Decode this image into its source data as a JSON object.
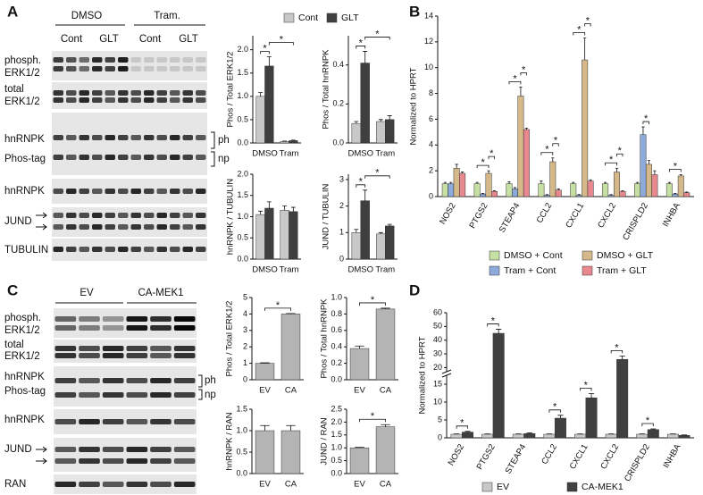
{
  "panel_labels": [
    "A",
    "B",
    "C",
    "D"
  ],
  "blots": {
    "A": {
      "groups": [
        "DMSO",
        "Tram."
      ],
      "conditions": [
        "Cont",
        "GLT",
        "Cont",
        "GLT"
      ],
      "rows": [
        [
          "phosph.",
          "ERK1/2"
        ],
        [
          "total",
          "ERK1/2"
        ],
        [
          "hnRNPK",
          "Phos-tag"
        ],
        [
          "hnRNPK"
        ],
        [
          "JUND"
        ],
        [
          "TUBULIN"
        ]
      ],
      "bands": [
        "ph",
        "np"
      ]
    },
    "C": {
      "groups": [
        "EV",
        "CA-MEK1"
      ],
      "rows": [
        [
          "phosph.",
          "ERK1/2"
        ],
        [
          "total",
          "ERK1/2"
        ],
        [
          "hnRNPK",
          "Phos-tag"
        ],
        [
          "hnRNPK"
        ],
        [
          "JUND"
        ],
        [
          "RAN"
        ]
      ],
      "bands": [
        "ph",
        "np"
      ]
    }
  },
  "chart_data": [
    {
      "type": "bar",
      "ylabel": "Phos / Total ERK1/2",
      "categories": [
        "DMSO",
        "Tram"
      ],
      "series": [
        {
          "name": "Cont",
          "color": "#c8c8c8",
          "values": [
            1.0,
            0.03
          ],
          "errors": [
            0.08,
            0.01
          ]
        },
        {
          "name": "GLT",
          "color": "#3f3f3f",
          "values": [
            1.65,
            0.05
          ],
          "errors": [
            0.2,
            0.01
          ]
        }
      ],
      "ylim": [
        0,
        2.3
      ],
      "yticks": [
        {
          "value": 0,
          "label": "0.0"
        },
        {
          "value": 0.5,
          "label": "0.5"
        },
        {
          "value": 1,
          "label": "1.0"
        },
        {
          "value": 1.5,
          "label": "1.5"
        },
        {
          "value": 2,
          "label": "2.0"
        }
      ],
      "annotations": [
        "*",
        "*"
      ]
    },
    {
      "type": "bar",
      "ylabel": "Phos / Total hnRNPK",
      "categories": [
        "DMSO",
        "Tram"
      ],
      "series": [
        {
          "color": "#c8c8c8",
          "values": [
            0.1,
            0.11
          ],
          "errors": [
            0.01,
            0.01
          ]
        },
        {
          "color": "#3f3f3f",
          "values": [
            0.41,
            0.12
          ],
          "errors": [
            0.06,
            0.02
          ]
        }
      ],
      "ylim": [
        0,
        0.55
      ],
      "yticks": [
        {
          "value": 0,
          "label": "0.0"
        },
        {
          "value": 0.2,
          "label": "0.2"
        },
        {
          "value": 0.4,
          "label": "0.4"
        }
      ],
      "annotations": [
        "*",
        "*"
      ]
    },
    {
      "type": "bar",
      "ylabel": "hnRNPK / TUBULIN",
      "categories": [
        "DMSO",
        "Tram"
      ],
      "series": [
        {
          "color": "#c8c8c8",
          "values": [
            1.05,
            1.15
          ],
          "errors": [
            0.08,
            0.1
          ]
        },
        {
          "color": "#3f3f3f",
          "values": [
            1.2,
            1.12
          ],
          "errors": [
            0.15,
            0.1
          ]
        }
      ],
      "ylim": [
        0,
        2
      ],
      "yticks": [
        {
          "value": 0,
          "label": "0.0"
        },
        {
          "value": 0.5,
          "label": "0.5"
        },
        {
          "value": 1,
          "label": "1.0"
        },
        {
          "value": 1.5,
          "label": "1.5"
        },
        {
          "value": 2,
          "label": "2.0"
        }
      ],
      "annotations": []
    },
    {
      "type": "bar",
      "ylabel": "JUND / TUBULIN",
      "categories": [
        "DMSO",
        "Tram"
      ],
      "series": [
        {
          "color": "#c8c8c8",
          "values": [
            1.0,
            0.95
          ],
          "errors": [
            0.12,
            0.05
          ]
        },
        {
          "color": "#3f3f3f",
          "values": [
            2.2,
            1.25
          ],
          "errors": [
            0.4,
            0.06
          ]
        }
      ],
      "ylim": [
        0,
        3.2
      ],
      "yticks": [
        0,
        1,
        2,
        3
      ],
      "annotations": [
        "*",
        "*"
      ]
    },
    {
      "type": "bar",
      "ylabel": "Normalized to HPRT",
      "categories": [
        "NOS2",
        "PTGS2",
        "STEAP4",
        "CCL2",
        "CXCL1",
        "CXCL2",
        "CRISPLD2",
        "INHBA"
      ],
      "series": [
        {
          "name": "DMSO + Cont",
          "color": "#c6e0a4",
          "values": [
            1.0,
            1.0,
            1.0,
            1.0,
            1.0,
            1.0,
            1.0,
            1.0
          ],
          "errors": [
            0.1,
            0.1,
            0.15,
            0.2,
            0.1,
            0.1,
            0.1,
            0.1
          ]
        },
        {
          "name": "Tram + Cont",
          "color": "#8eaadb",
          "values": [
            1.0,
            0.2,
            0.6,
            0.1,
            0.1,
            0.1,
            4.8,
            0.2
          ],
          "errors": [
            0.1,
            0.05,
            0.1,
            0.05,
            0.05,
            0.05,
            0.6,
            0.05
          ]
        },
        {
          "name": "DMSO + GLT",
          "color": "#d6b98a",
          "values": [
            2.2,
            1.8,
            7.8,
            2.7,
            10.6,
            1.9,
            2.5,
            1.6
          ],
          "errors": [
            0.3,
            0.2,
            0.7,
            0.3,
            1.7,
            0.3,
            0.3,
            0.1
          ]
        },
        {
          "name": "Tram + GLT",
          "color": "#e8888f",
          "values": [
            1.8,
            0.4,
            5.2,
            0.5,
            1.2,
            0.4,
            1.7,
            0.3
          ],
          "errors": [
            0.1,
            0.05,
            0.1,
            0.1,
            0.1,
            0.05,
            0.3,
            0.05
          ]
        }
      ],
      "ylim": [
        0,
        14
      ],
      "yticks": [
        0,
        2,
        4,
        6,
        8,
        10,
        12,
        14
      ],
      "annotations": [
        "*",
        "*",
        "*",
        "*",
        "*",
        "*",
        "*",
        "*",
        "*",
        "*",
        "*",
        "*"
      ]
    },
    {
      "type": "bar",
      "ylabel": "Phos / Total ERK1/2",
      "categories": [
        "EV",
        "CA"
      ],
      "series": [
        {
          "color": "#b4b4b4",
          "values": [
            1.0,
            4.0
          ],
          "errors": [
            0.03,
            0.03
          ]
        }
      ],
      "ylim": [
        0,
        5
      ],
      "yticks": [
        0,
        1,
        2,
        3,
        4,
        5
      ],
      "annotations": [
        "*"
      ]
    },
    {
      "type": "bar",
      "ylabel": "Phos / Total hnRNPK",
      "categories": [
        "EV",
        "CA"
      ],
      "series": [
        {
          "color": "#b4b4b4",
          "values": [
            0.38,
            0.86
          ],
          "errors": [
            0.03,
            0.01
          ]
        }
      ],
      "ylim": [
        0,
        1
      ],
      "yticks": [
        {
          "value": 0,
          "label": "0.0"
        },
        {
          "value": 0.2,
          "label": "0.2"
        },
        {
          "value": 0.4,
          "label": "0.4"
        },
        {
          "value": 0.6,
          "label": "0.6"
        },
        {
          "value": 0.8,
          "label": "0.8"
        },
        {
          "value": 1,
          "label": "1.0"
        }
      ],
      "annotations": [
        "*"
      ]
    },
    {
      "type": "bar",
      "ylabel": "hnRNPK / RAN",
      "categories": [
        "EV",
        "CA"
      ],
      "series": [
        {
          "color": "#b4b4b4",
          "values": [
            1.0,
            1.0
          ],
          "errors": [
            0.12,
            0.12
          ]
        }
      ],
      "ylim": [
        0,
        1.5
      ],
      "yticks": [
        {
          "value": 0,
          "label": "0.0"
        },
        {
          "value": 0.5,
          "label": "0.5"
        },
        {
          "value": 1,
          "label": "1.0"
        },
        {
          "value": 1.5,
          "label": "1.5"
        }
      ],
      "annotations": []
    },
    {
      "type": "bar",
      "ylabel": "JUND / RAN",
      "categories": [
        "EV",
        "CA"
      ],
      "series": [
        {
          "color": "#b4b4b4",
          "values": [
            1.0,
            1.82
          ],
          "errors": [
            0.02,
            0.08
          ]
        }
      ],
      "ylim": [
        0,
        2.5
      ],
      "yticks": [
        {
          "value": 0,
          "label": "0.0"
        },
        {
          "value": 0.5,
          "label": "0.5"
        },
        {
          "value": 1,
          "label": "1.0"
        },
        {
          "value": 1.5,
          "label": "1.5"
        },
        {
          "value": 2,
          "label": "2.0"
        },
        {
          "value": 2.5,
          "label": "2.5"
        }
      ],
      "annotations": [
        "*"
      ]
    },
    {
      "type": "bar",
      "ylabel": "Normalized to HPRT",
      "categories": [
        "NOS2",
        "PTGS2",
        "STEAP4",
        "CCL2",
        "CXCL1",
        "CXCL2",
        "CRISPLD2",
        "INHBA"
      ],
      "series": [
        {
          "name": "EV",
          "color": "#c8c8c8",
          "values": [
            1.0,
            1.0,
            1.0,
            1.0,
            1.0,
            1.0,
            1.0,
            1.0
          ],
          "errors": [
            0.1,
            0.1,
            0.1,
            0.1,
            0.1,
            0.1,
            0.1,
            0.1
          ]
        },
        {
          "name": "CA-MEK1",
          "color": "#404040",
          "values": [
            1.6,
            45,
            1.2,
            5.5,
            11.2,
            26,
            2.3,
            0.7
          ],
          "errors": [
            0.2,
            3,
            0.2,
            0.8,
            1.2,
            2.5,
            0.2,
            0.1
          ]
        }
      ],
      "ylim": [
        0,
        60
      ],
      "ybreak": [
        16.5,
        17
      ],
      "yticks": [
        0,
        5,
        10,
        15,
        20,
        30,
        40,
        50,
        60
      ],
      "annotations": [
        "*",
        "*",
        "*",
        "*",
        "*",
        "*"
      ]
    }
  ]
}
